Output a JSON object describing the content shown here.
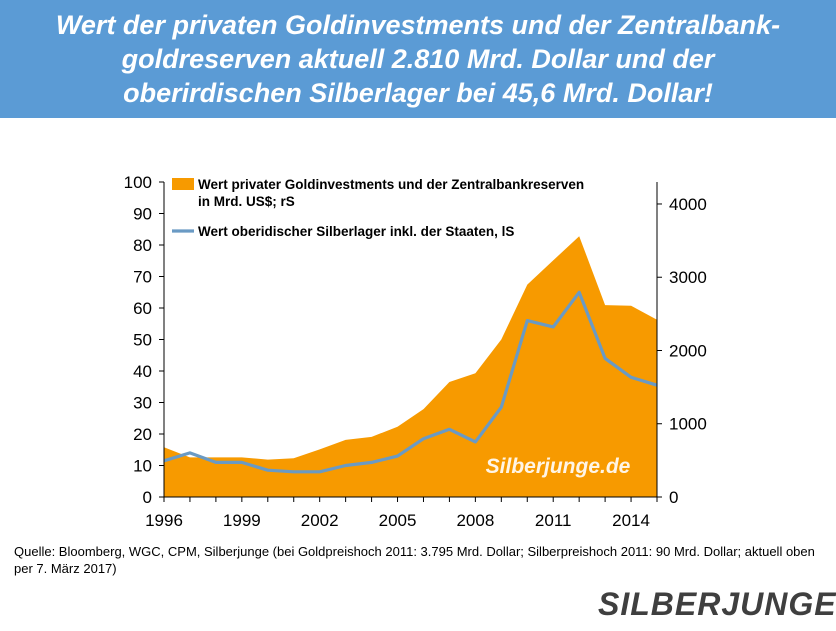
{
  "header": {
    "lines": [
      "Wert der privaten Goldinvestments und der Zentralbank-",
      "goldreserven aktuell 2.810 Mrd. Dollar und der",
      "oberirdischen Silberlager bei 45,6 Mrd. Dollar!"
    ]
  },
  "chart_data": {
    "type": "area",
    "x": [
      1996,
      1997,
      1998,
      1999,
      2000,
      2001,
      2002,
      2003,
      2004,
      2005,
      2006,
      2007,
      2008,
      2009,
      2010,
      2011,
      2012,
      2013,
      2014,
      2015
    ],
    "x_ticks": [
      "1996",
      "1999",
      "2002",
      "2005",
      "2008",
      "2011",
      "2014"
    ],
    "xlim": [
      1996,
      2015
    ],
    "left_axis": {
      "ylim": [
        0,
        100
      ],
      "ticks": [
        "0",
        "10",
        "20",
        "30",
        "40",
        "50",
        "60",
        "70",
        "80",
        "90",
        "100"
      ]
    },
    "right_axis": {
      "ylim": [
        0,
        4300
      ],
      "ticks": [
        "0",
        "1000",
        "2000",
        "3000",
        "4000"
      ]
    },
    "series": [
      {
        "name": "Wert privater Goldinvestments und der Zentralbankreserven in Mrd. US$; rS",
        "legend_lines": [
          "Wert privater Goldinvestments und der Zentralbankreserven",
          "in Mrd. US$; rS"
        ],
        "type": "area",
        "axis": "right",
        "color": "#f79a00",
        "values": [
          680,
          540,
          540,
          540,
          510,
          530,
          650,
          780,
          820,
          960,
          1200,
          1570,
          1690,
          2150,
          2900,
          3230,
          3560,
          2620,
          2610,
          2420
        ]
      },
      {
        "name": "Wert oberidischer Silberlager inkl. der Staaten, lS",
        "legend_lines": [
          "Wert oberidischer Silberlager inkl. der Staaten, lS"
        ],
        "type": "line",
        "axis": "left",
        "color": "#6a9ac4",
        "values": [
          11.5,
          14,
          11,
          11,
          8.5,
          8,
          8,
          10,
          11,
          13,
          18.5,
          21.5,
          17.5,
          28.5,
          56,
          54,
          65,
          44,
          38,
          35.5
        ]
      }
    ],
    "watermark": "Silberjunge.de"
  },
  "source": "Quelle: Bloomberg, WGC, CPM, Silberjunge (bei Goldpreishoch 2011: 3.795 Mrd. Dollar; Silberpreishoch 2011: 90 Mrd. Dollar; aktuell oben per 7. März 2017)",
  "logo": "SILBERJUNGE."
}
